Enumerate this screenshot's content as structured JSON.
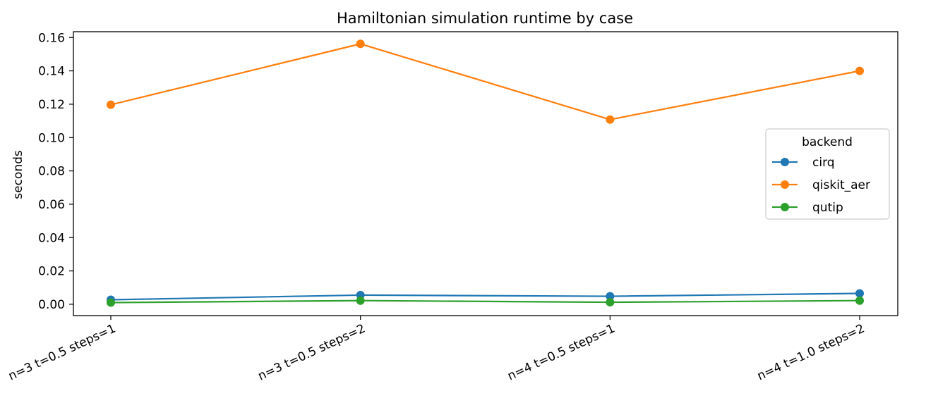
{
  "chart_data": {
    "type": "line",
    "title": "Hamiltonian simulation runtime by case",
    "xlabel": "",
    "ylabel": "seconds",
    "categories": [
      "n=3 t=0.5 steps=1",
      "n=3 t=0.5 steps=2",
      "n=4 t=0.5 steps=1",
      "n=4 t=1.0 steps=2"
    ],
    "ylim": [
      -0.0068,
      0.1635
    ],
    "yticks": [
      0.0,
      0.02,
      0.04,
      0.06,
      0.08,
      0.1,
      0.12,
      0.14,
      0.16
    ],
    "ytick_labels": [
      "0.00",
      "0.02",
      "0.04",
      "0.06",
      "0.08",
      "0.10",
      "0.12",
      "0.14",
      "0.16"
    ],
    "grid": false,
    "legend": {
      "title": "backend",
      "placement": "center-right"
    },
    "series": [
      {
        "name": "cirq",
        "color": "#1f77b4",
        "marker": "circle",
        "values": [
          0.0027,
          0.0055,
          0.0048,
          0.0065
        ]
      },
      {
        "name": "qiskit_aer",
        "color": "#ff7f0e",
        "marker": "circle",
        "values": [
          0.1197,
          0.1562,
          0.1108,
          0.14
        ]
      },
      {
        "name": "qutip",
        "color": "#2ca02c",
        "marker": "circle",
        "values": [
          0.001,
          0.0022,
          0.0012,
          0.0022
        ]
      }
    ]
  }
}
